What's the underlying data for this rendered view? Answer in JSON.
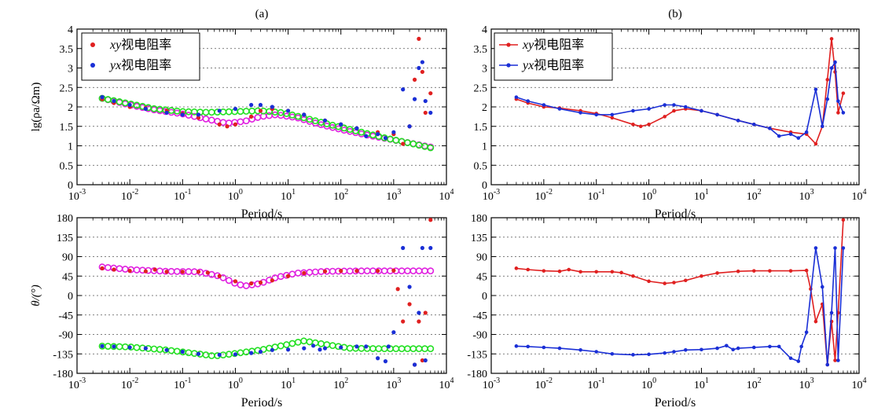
{
  "chart_data": {
    "type": "scatter",
    "x_scale": "log",
    "xlim": [
      0.001,
      10000
    ],
    "x_ticks": [
      {
        "base": "10",
        "exp": "-3"
      },
      {
        "base": "10",
        "exp": "-2"
      },
      {
        "base": "10",
        "exp": "-1"
      },
      {
        "base": "10",
        "exp": "0"
      },
      {
        "base": "10",
        "exp": "1"
      },
      {
        "base": "10",
        "exp": "2"
      },
      {
        "base": "10",
        "exp": "3"
      },
      {
        "base": "10",
        "exp": "4"
      }
    ],
    "xlabel": "Period/s",
    "top_row": {
      "ylabel": "lg(ρa/Ωm)",
      "ylim": [
        0,
        4
      ],
      "y_ticks": [
        "0",
        "0.5",
        "1",
        "1.5",
        "2",
        "2.5",
        "3",
        "3.5",
        "4"
      ]
    },
    "bottom_row": {
      "ylabel": "θ/(°)",
      "ylim": [
        -180,
        180
      ],
      "y_ticks": [
        "-180",
        "-135",
        "-90",
        "-45",
        "0",
        "45",
        "90",
        "135",
        "180"
      ]
    },
    "panels": [
      {
        "label": "(a)",
        "style": "scatter-with-fit",
        "legend": [
          {
            "prefix": "xy",
            "text": "视电阻率",
            "color": "#e02020"
          },
          {
            "prefix": "yx",
            "text": "视电阻率",
            "color": "#1a2fd6"
          }
        ],
        "series": [
          {
            "name": "xy视电阻率",
            "color": "#e02020",
            "fit_color": "#e020e0"
          },
          {
            "name": "yx视电阻率",
            "color": "#1a2fd6",
            "fit_color": "#22e022"
          }
        ]
      },
      {
        "label": "(b)",
        "style": "line",
        "legend": [
          {
            "prefix": "xy",
            "text": "视电阻率",
            "color": "#e02020"
          },
          {
            "prefix": "yx",
            "text": "视电阻率",
            "color": "#1a2fd6"
          }
        ],
        "series": [
          {
            "name": "xy视电阻率",
            "color": "#e02020"
          },
          {
            "name": "yx视电阻率",
            "color": "#1a2fd6"
          }
        ]
      }
    ],
    "rho_xy": [
      [
        0.003,
        2.2
      ],
      [
        0.005,
        2.1
      ],
      [
        0.01,
        2.0
      ],
      [
        0.02,
        1.97
      ],
      [
        0.05,
        1.9
      ],
      [
        0.1,
        1.83
      ],
      [
        0.2,
        1.72
      ],
      [
        0.5,
        1.55
      ],
      [
        0.7,
        1.5
      ],
      [
        1,
        1.55
      ],
      [
        2,
        1.75
      ],
      [
        3,
        1.9
      ],
      [
        5,
        1.95
      ],
      [
        10,
        1.9
      ],
      [
        20,
        1.8
      ],
      [
        50,
        1.65
      ],
      [
        100,
        1.55
      ],
      [
        200,
        1.45
      ],
      [
        500,
        1.35
      ],
      [
        1000,
        1.3
      ],
      [
        1500,
        1.05
      ],
      [
        2000,
        1.5
      ],
      [
        2500,
        2.7
      ],
      [
        3000,
        3.75
      ],
      [
        3500,
        2.9
      ],
      [
        4000,
        1.85
      ],
      [
        5000,
        2.35
      ]
    ],
    "rho_yx": [
      [
        0.003,
        2.25
      ],
      [
        0.005,
        2.15
      ],
      [
        0.01,
        2.05
      ],
      [
        0.02,
        1.95
      ],
      [
        0.05,
        1.85
      ],
      [
        0.1,
        1.8
      ],
      [
        0.2,
        1.8
      ],
      [
        0.5,
        1.9
      ],
      [
        1,
        1.95
      ],
      [
        2,
        2.05
      ],
      [
        3,
        2.05
      ],
      [
        5,
        2.0
      ],
      [
        10,
        1.9
      ],
      [
        20,
        1.8
      ],
      [
        50,
        1.65
      ],
      [
        100,
        1.55
      ],
      [
        200,
        1.45
      ],
      [
        300,
        1.25
      ],
      [
        500,
        1.3
      ],
      [
        700,
        1.2
      ],
      [
        1000,
        1.35
      ],
      [
        1500,
        2.45
      ],
      [
        2000,
        1.5
      ],
      [
        2500,
        2.2
      ],
      [
        3000,
        3.0
      ],
      [
        3500,
        3.15
      ],
      [
        4000,
        2.15
      ],
      [
        5000,
        1.85
      ]
    ],
    "rho_xy_fit": [
      [
        0.003,
        2.22
      ],
      [
        0.01,
        2.05
      ],
      [
        0.03,
        1.92
      ],
      [
        0.1,
        1.82
      ],
      [
        0.3,
        1.68
      ],
      [
        0.7,
        1.58
      ],
      [
        1.5,
        1.63
      ],
      [
        3,
        1.75
      ],
      [
        6,
        1.8
      ],
      [
        15,
        1.72
      ],
      [
        40,
        1.55
      ],
      [
        100,
        1.42
      ],
      [
        300,
        1.28
      ],
      [
        1000,
        1.15
      ],
      [
        5000,
        0.97
      ]
    ],
    "rho_yx_fit": [
      [
        0.003,
        2.22
      ],
      [
        0.01,
        2.08
      ],
      [
        0.03,
        1.95
      ],
      [
        0.1,
        1.88
      ],
      [
        0.3,
        1.86
      ],
      [
        1,
        1.88
      ],
      [
        3,
        1.9
      ],
      [
        8,
        1.85
      ],
      [
        20,
        1.72
      ],
      [
        60,
        1.55
      ],
      [
        200,
        1.38
      ],
      [
        700,
        1.2
      ],
      [
        2000,
        1.07
      ],
      [
        5000,
        0.95
      ]
    ],
    "phase_xy": [
      [
        0.003,
        63
      ],
      [
        0.005,
        60
      ],
      [
        0.01,
        57
      ],
      [
        0.02,
        56
      ],
      [
        0.03,
        60
      ],
      [
        0.05,
        55
      ],
      [
        0.1,
        55
      ],
      [
        0.2,
        55
      ],
      [
        0.3,
        53
      ],
      [
        0.5,
        45
      ],
      [
        1,
        33
      ],
      [
        2,
        28
      ],
      [
        3,
        30
      ],
      [
        5,
        35
      ],
      [
        10,
        45
      ],
      [
        20,
        52
      ],
      [
        50,
        56
      ],
      [
        100,
        57
      ],
      [
        200,
        57
      ],
      [
        500,
        57
      ],
      [
        1000,
        58
      ],
      [
        1200,
        15
      ],
      [
        1500,
        -60
      ],
      [
        2000,
        -20
      ],
      [
        2500,
        -160
      ],
      [
        3000,
        -60
      ],
      [
        3500,
        -150
      ],
      [
        4000,
        -40
      ],
      [
        5000,
        175
      ]
    ],
    "phase_yx": [
      [
        0.003,
        -117
      ],
      [
        0.005,
        -118
      ],
      [
        0.01,
        -120
      ],
      [
        0.02,
        -122
      ],
      [
        0.05,
        -126
      ],
      [
        0.1,
        -130
      ],
      [
        0.2,
        -135
      ],
      [
        0.5,
        -137
      ],
      [
        1,
        -136
      ],
      [
        2,
        -133
      ],
      [
        3,
        -130
      ],
      [
        5,
        -126
      ],
      [
        10,
        -125
      ],
      [
        20,
        -122
      ],
      [
        30,
        -116
      ],
      [
        40,
        -125
      ],
      [
        50,
        -122
      ],
      [
        100,
        -120
      ],
      [
        200,
        -118
      ],
      [
        300,
        -118
      ],
      [
        500,
        -145
      ],
      [
        700,
        -152
      ],
      [
        800,
        -118
      ],
      [
        1000,
        -85
      ],
      [
        1500,
        110
      ],
      [
        2000,
        20
      ],
      [
        2500,
        -160
      ],
      [
        3000,
        -40
      ],
      [
        3500,
        110
      ],
      [
        4000,
        -150
      ],
      [
        5000,
        110
      ]
    ],
    "phase_xy_fit": [
      [
        0.003,
        66
      ],
      [
        0.01,
        60
      ],
      [
        0.05,
        56
      ],
      [
        0.2,
        55
      ],
      [
        0.5,
        45
      ],
      [
        1,
        28
      ],
      [
        1.5,
        22
      ],
      [
        3,
        28
      ],
      [
        6,
        42
      ],
      [
        15,
        52
      ],
      [
        50,
        56
      ],
      [
        300,
        57
      ],
      [
        5000,
        57
      ]
    ],
    "phase_yx_fit": [
      [
        0.003,
        -117
      ],
      [
        0.01,
        -119
      ],
      [
        0.05,
        -126
      ],
      [
        0.2,
        -135
      ],
      [
        0.4,
        -140
      ],
      [
        1,
        -134
      ],
      [
        3,
        -126
      ],
      [
        10,
        -113
      ],
      [
        20,
        -105
      ],
      [
        50,
        -113
      ],
      [
        150,
        -122
      ],
      [
        600,
        -123
      ],
      [
        5000,
        -123
      ]
    ]
  }
}
